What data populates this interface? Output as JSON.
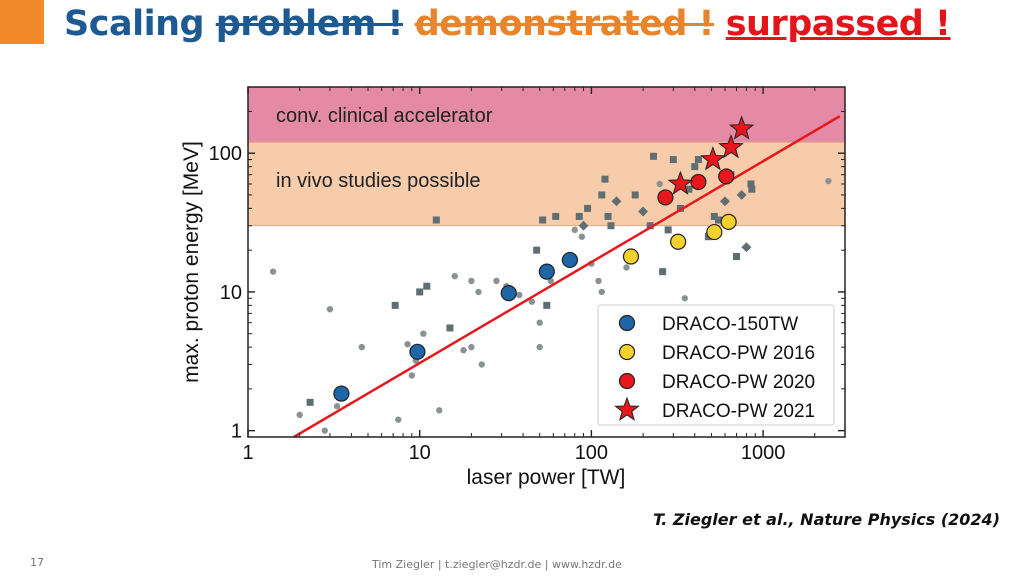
{
  "slide": {
    "title_part1": "Scaling ",
    "title_part2": "problem !",
    "title_part3": "demonstrated !",
    "title_part4": "surpassed !",
    "reference": "T. Ziegler et al., Nature Physics (2024)",
    "page_number": "17",
    "footer": "Tim Ziegler | t.ziegler@hzdr.de | www.hzdr.de"
  },
  "chart_data": {
    "type": "scatter",
    "xscale": "log",
    "yscale": "log",
    "xlim": [
      1,
      3000
    ],
    "ylim": [
      0.9,
      300
    ],
    "xlabel": "laser power [TW]",
    "ylabel": "max. proton energy [MeV]",
    "x_ticks": [
      1,
      10,
      100,
      1000
    ],
    "x_tick_labels": [
      "1",
      "10",
      "100",
      "1000"
    ],
    "y_ticks": [
      1,
      10,
      100
    ],
    "y_tick_labels": [
      "1",
      "10",
      "100"
    ],
    "bands": [
      {
        "label": "conv. clinical accelerator",
        "from": 120,
        "to": 300,
        "color": "#e58aa6"
      },
      {
        "label": "in vivo studies possible",
        "from": 30,
        "to": 120,
        "color": "#f6ccaa"
      }
    ],
    "fit_line": {
      "color": "#e8171d",
      "points": [
        [
          1.85,
          0.9
        ],
        [
          2800,
          185
        ]
      ]
    },
    "background_points": [
      {
        "x": 1.4,
        "y": 14,
        "marker": "circle"
      },
      {
        "x": 2,
        "y": 1.3,
        "marker": "circle"
      },
      {
        "x": 2.3,
        "y": 1.6,
        "marker": "square"
      },
      {
        "x": 2.8,
        "y": 1,
        "marker": "circle"
      },
      {
        "x": 3,
        "y": 7.5,
        "marker": "circle"
      },
      {
        "x": 3.3,
        "y": 1.5,
        "marker": "circle"
      },
      {
        "x": 4.6,
        "y": 4,
        "marker": "circle"
      },
      {
        "x": 7.2,
        "y": 8,
        "marker": "square"
      },
      {
        "x": 7.5,
        "y": 1.2,
        "marker": "circle"
      },
      {
        "x": 8.5,
        "y": 4.2,
        "marker": "circle"
      },
      {
        "x": 9,
        "y": 2.5,
        "marker": "circle"
      },
      {
        "x": 9.5,
        "y": 3.2,
        "marker": "circle"
      },
      {
        "x": 10,
        "y": 10,
        "marker": "square"
      },
      {
        "x": 10.5,
        "y": 5,
        "marker": "circle"
      },
      {
        "x": 11,
        "y": 11,
        "marker": "square"
      },
      {
        "x": 12.5,
        "y": 33,
        "marker": "square"
      },
      {
        "x": 13,
        "y": 1.4,
        "marker": "circle"
      },
      {
        "x": 15,
        "y": 5.5,
        "marker": "square"
      },
      {
        "x": 16,
        "y": 13,
        "marker": "circle"
      },
      {
        "x": 18,
        "y": 3.8,
        "marker": "circle"
      },
      {
        "x": 20,
        "y": 12,
        "marker": "circle"
      },
      {
        "x": 20,
        "y": 4,
        "marker": "circle"
      },
      {
        "x": 22,
        "y": 10,
        "marker": "circle"
      },
      {
        "x": 23,
        "y": 3,
        "marker": "circle"
      },
      {
        "x": 28,
        "y": 12,
        "marker": "circle"
      },
      {
        "x": 32,
        "y": 11,
        "marker": "circle"
      },
      {
        "x": 35,
        "y": 10,
        "marker": "circle"
      },
      {
        "x": 38,
        "y": 9.5,
        "marker": "circle"
      },
      {
        "x": 45,
        "y": 8.5,
        "marker": "circle"
      },
      {
        "x": 48,
        "y": 20,
        "marker": "square"
      },
      {
        "x": 50,
        "y": 6,
        "marker": "circle"
      },
      {
        "x": 50,
        "y": 4,
        "marker": "circle"
      },
      {
        "x": 52,
        "y": 33,
        "marker": "square"
      },
      {
        "x": 55,
        "y": 8,
        "marker": "square"
      },
      {
        "x": 58,
        "y": 12,
        "marker": "circle"
      },
      {
        "x": 62,
        "y": 35,
        "marker": "square"
      },
      {
        "x": 70,
        "y": 17,
        "marker": "circle"
      },
      {
        "x": 80,
        "y": 28,
        "marker": "circle"
      },
      {
        "x": 85,
        "y": 35,
        "marker": "square"
      },
      {
        "x": 88,
        "y": 25,
        "marker": "circle"
      },
      {
        "x": 90,
        "y": 30,
        "marker": "diamond"
      },
      {
        "x": 95,
        "y": 40,
        "marker": "square"
      },
      {
        "x": 100,
        "y": 16,
        "marker": "circle"
      },
      {
        "x": 110,
        "y": 12,
        "marker": "circle"
      },
      {
        "x": 115,
        "y": 50,
        "marker": "square"
      },
      {
        "x": 115,
        "y": 10,
        "marker": "circle"
      },
      {
        "x": 120,
        "y": 65,
        "marker": "square"
      },
      {
        "x": 125,
        "y": 35,
        "marker": "square"
      },
      {
        "x": 130,
        "y": 30,
        "marker": "square"
      },
      {
        "x": 140,
        "y": 45,
        "marker": "diamond"
      },
      {
        "x": 160,
        "y": 15,
        "marker": "circle"
      },
      {
        "x": 180,
        "y": 50,
        "marker": "square"
      },
      {
        "x": 200,
        "y": 38,
        "marker": "diamond"
      },
      {
        "x": 220,
        "y": 30,
        "marker": "square"
      },
      {
        "x": 230,
        "y": 95,
        "marker": "square"
      },
      {
        "x": 250,
        "y": 60,
        "marker": "circle"
      },
      {
        "x": 260,
        "y": 14,
        "marker": "square"
      },
      {
        "x": 280,
        "y": 28,
        "marker": "square"
      },
      {
        "x": 300,
        "y": 90,
        "marker": "square"
      },
      {
        "x": 330,
        "y": 40,
        "marker": "square"
      },
      {
        "x": 350,
        "y": 9,
        "marker": "circle"
      },
      {
        "x": 370,
        "y": 55,
        "marker": "square"
      },
      {
        "x": 400,
        "y": 80,
        "marker": "square"
      },
      {
        "x": 420,
        "y": 90,
        "marker": "square"
      },
      {
        "x": 480,
        "y": 25,
        "marker": "square"
      },
      {
        "x": 520,
        "y": 35,
        "marker": "square"
      },
      {
        "x": 550,
        "y": 33,
        "marker": "square"
      },
      {
        "x": 600,
        "y": 45,
        "marker": "diamond"
      },
      {
        "x": 650,
        "y": 70,
        "marker": "square"
      },
      {
        "x": 700,
        "y": 18,
        "marker": "square"
      },
      {
        "x": 750,
        "y": 50,
        "marker": "diamond"
      },
      {
        "x": 800,
        "y": 21,
        "marker": "diamond"
      },
      {
        "x": 850,
        "y": 60,
        "marker": "square"
      },
      {
        "x": 860,
        "y": 55,
        "marker": "square"
      },
      {
        "x": 2400,
        "y": 63,
        "marker": "circle"
      }
    ],
    "series": [
      {
        "name": "DRACO-150TW",
        "marker": "circle",
        "color": "#1f66a8",
        "x": [
          3.5,
          9.7,
          33,
          55,
          75
        ],
        "y": [
          1.85,
          3.7,
          9.8,
          14,
          17
        ]
      },
      {
        "name": "DRACO-PW 2016",
        "marker": "circle",
        "color": "#f5d12e",
        "x": [
          170,
          320,
          520,
          630
        ],
        "y": [
          18,
          23,
          27,
          32
        ]
      },
      {
        "name": "DRACO-PW 2020",
        "marker": "circle",
        "color": "#e8171d",
        "x": [
          270,
          420,
          610
        ],
        "y": [
          48,
          62,
          68
        ]
      },
      {
        "name": "DRACO-PW 2021",
        "marker": "star",
        "color": "#e8171d",
        "x": [
          330,
          510,
          650,
          750
        ],
        "y": [
          60,
          90,
          110,
          150
        ]
      }
    ],
    "legend_position": "bottom-right"
  }
}
